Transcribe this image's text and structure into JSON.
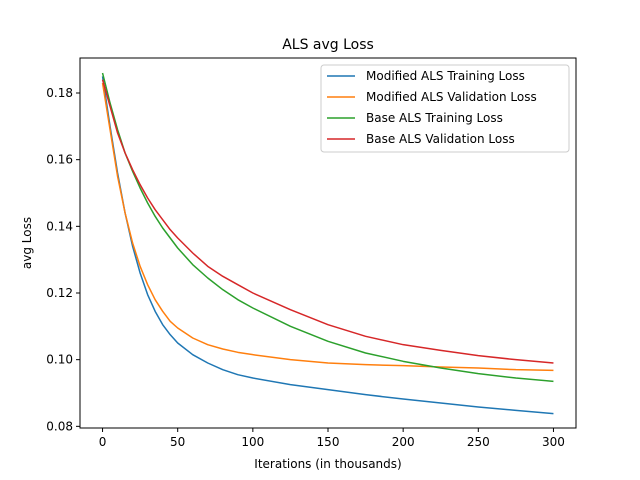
{
  "chart_data": {
    "type": "line",
    "title": "ALS avg Loss",
    "xlabel": "Iterations (in thousands)",
    "ylabel": "avg Loss",
    "xlim": [
      -15,
      315
    ],
    "ylim": [
      0.0795,
      0.1905
    ],
    "xticks": [
      0,
      50,
      100,
      150,
      200,
      250,
      300
    ],
    "yticks": [
      0.08,
      0.1,
      0.12,
      0.14,
      0.16,
      0.18
    ],
    "ytick_labels": [
      "0.08",
      "0.10",
      "0.12",
      "0.14",
      "0.16",
      "0.18"
    ],
    "grid": false,
    "legend_position": "top-right",
    "series": [
      {
        "name": "Modified ALS Training Loss",
        "color": "#1f77b4",
        "x": [
          0,
          5,
          10,
          15,
          20,
          25,
          30,
          35,
          40,
          45,
          50,
          60,
          70,
          80,
          90,
          100,
          125,
          150,
          175,
          200,
          225,
          250,
          275,
          300
        ],
        "y": [
          0.185,
          0.17,
          0.156,
          0.144,
          0.134,
          0.126,
          0.1195,
          0.1145,
          0.1105,
          0.1075,
          0.105,
          0.1015,
          0.099,
          0.097,
          0.0955,
          0.0945,
          0.0925,
          0.091,
          0.0895,
          0.0882,
          0.087,
          0.0858,
          0.0848,
          0.0838
        ]
      },
      {
        "name": "Modified ALS Validation Loss",
        "color": "#ff7f0e",
        "x": [
          0,
          5,
          10,
          15,
          20,
          25,
          30,
          35,
          40,
          45,
          50,
          60,
          70,
          80,
          90,
          100,
          125,
          150,
          175,
          200,
          225,
          250,
          275,
          300
        ],
        "y": [
          0.183,
          0.169,
          0.155,
          0.144,
          0.135,
          0.128,
          0.1225,
          0.118,
          0.1145,
          0.1115,
          0.1095,
          0.1065,
          0.1045,
          0.1032,
          0.1022,
          0.1015,
          0.1,
          0.099,
          0.0985,
          0.0982,
          0.0978,
          0.0975,
          0.097,
          0.0968
        ]
      },
      {
        "name": "Base ALS Training Loss",
        "color": "#2ca02c",
        "x": [
          0,
          5,
          10,
          15,
          20,
          25,
          30,
          35,
          40,
          45,
          50,
          60,
          70,
          80,
          90,
          100,
          125,
          150,
          175,
          200,
          225,
          250,
          275,
          300
        ],
        "y": [
          0.186,
          0.177,
          0.169,
          0.162,
          0.1565,
          0.1515,
          0.147,
          0.143,
          0.1395,
          0.1365,
          0.1335,
          0.1285,
          0.1245,
          0.121,
          0.118,
          0.1155,
          0.11,
          0.1055,
          0.102,
          0.0995,
          0.0975,
          0.0958,
          0.0945,
          0.0935
        ]
      },
      {
        "name": "Base ALS Validation Loss",
        "color": "#d62728",
        "x": [
          0,
          5,
          10,
          15,
          20,
          25,
          30,
          35,
          40,
          45,
          50,
          60,
          70,
          80,
          90,
          100,
          125,
          150,
          175,
          200,
          225,
          250,
          275,
          300
        ],
        "y": [
          0.184,
          0.176,
          0.168,
          0.162,
          0.157,
          0.1525,
          0.1485,
          0.145,
          0.142,
          0.139,
          0.1365,
          0.132,
          0.128,
          0.125,
          0.1225,
          0.12,
          0.115,
          0.1105,
          0.107,
          0.1045,
          0.1028,
          0.1012,
          0.1,
          0.099
        ]
      }
    ]
  }
}
